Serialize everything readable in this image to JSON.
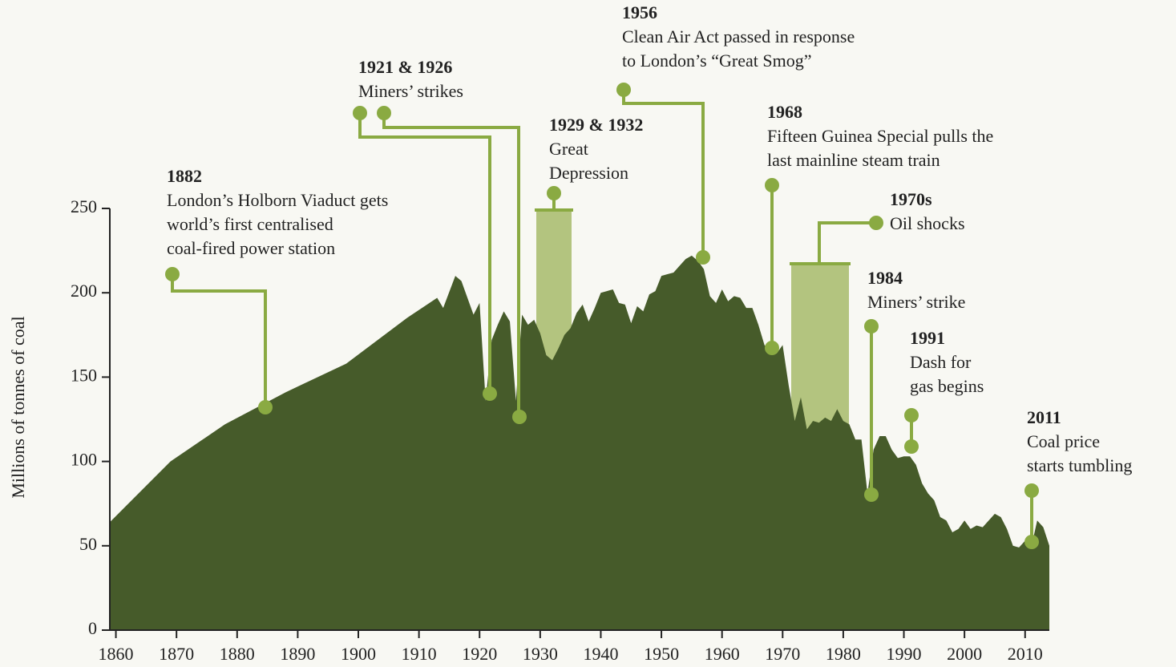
{
  "chart_data": {
    "type": "area",
    "y_label": "Millions of tonnes of coal",
    "color": "#465b2a",
    "x": [
      1859,
      1869,
      1878,
      1888,
      1898,
      1908,
      1913,
      1914,
      1916,
      1917,
      1919,
      1920,
      1921,
      1922,
      1923,
      1924,
      1925,
      1926,
      1927,
      1928,
      1929,
      1930,
      1931,
      1932,
      1933,
      1934,
      1935,
      1936,
      1937,
      1938,
      1939,
      1940,
      1941,
      1942,
      1943,
      1944,
      1945,
      1946,
      1947,
      1948,
      1949,
      1950,
      1951,
      1952,
      1953,
      1954,
      1955,
      1956,
      1957,
      1958,
      1959,
      1960,
      1961,
      1962,
      1963,
      1964,
      1965,
      1966,
      1967,
      1968,
      1969,
      1970,
      1971,
      1972,
      1973,
      1974,
      1975,
      1976,
      1977,
      1978,
      1979,
      1980,
      1981,
      1982,
      1983,
      1984,
      1985,
      1986,
      1987,
      1988,
      1989,
      1990,
      1991,
      1992,
      1993,
      1994,
      1995,
      1996,
      1997,
      1998,
      1999,
      2000,
      2001,
      2002,
      2003,
      2004,
      2005,
      2006,
      2007,
      2008,
      2009,
      2010,
      2011,
      2012,
      2013,
      2014
    ],
    "values": [
      64,
      100,
      122,
      141,
      158,
      185,
      197,
      191,
      210,
      207,
      187,
      194,
      136,
      172,
      181,
      189,
      183,
      136,
      187,
      181,
      184,
      176,
      163,
      160,
      167,
      175,
      179,
      188,
      193,
      183,
      191,
      200,
      201,
      202,
      194,
      193,
      182,
      192,
      189,
      199,
      201,
      210,
      211,
      212,
      216,
      220,
      222,
      219,
      214,
      198,
      194,
      202,
      195,
      198,
      197,
      191,
      191,
      181,
      169,
      165,
      164,
      169,
      145,
      124,
      138,
      119,
      124,
      123,
      126,
      124,
      131,
      124,
      122,
      113,
      113,
      81,
      107,
      115,
      115,
      107,
      102,
      103,
      103,
      98,
      87,
      81,
      77,
      67,
      65,
      58,
      60,
      65,
      60,
      62,
      61,
      65,
      69,
      67,
      60,
      50,
      49,
      53,
      49,
      65,
      61,
      50
    ],
    "xlim": [
      1859,
      2014
    ],
    "ylim": [
      0,
      250
    ],
    "xticks": [
      1860,
      1870,
      1880,
      1890,
      1900,
      1910,
      1920,
      1930,
      1940,
      1950,
      1960,
      1970,
      1980,
      1990,
      2000,
      2010
    ],
    "yticks": [
      0,
      50,
      100,
      150,
      200,
      250
    ],
    "annotations": [
      {
        "year": "1882",
        "lines": [
          "London’s Holborn Viaduct gets",
          "world’s first centralised",
          "coal-fired power station"
        ]
      },
      {
        "year": "1921 & 1926",
        "lines": [
          "Miners’ strikes"
        ]
      },
      {
        "year": "1929 & 1932",
        "lines": [
          "Great",
          "Depression"
        ]
      },
      {
        "year": "1956",
        "lines": [
          "Clean Air Act passed in response",
          "to London’s “Great Smog”"
        ]
      },
      {
        "year": "1968",
        "lines": [
          "Fifteen Guinea Special pulls the",
          "last mainline steam train"
        ]
      },
      {
        "year": "1970s",
        "lines": [
          "Oil shocks"
        ]
      },
      {
        "year": "1984",
        "lines": [
          "Miners’ strike"
        ]
      },
      {
        "year": "1991",
        "lines": [
          "Dash for",
          "gas begins"
        ]
      },
      {
        "year": "2011",
        "lines": [
          "Coal price",
          "starts tumbling"
        ]
      }
    ]
  }
}
